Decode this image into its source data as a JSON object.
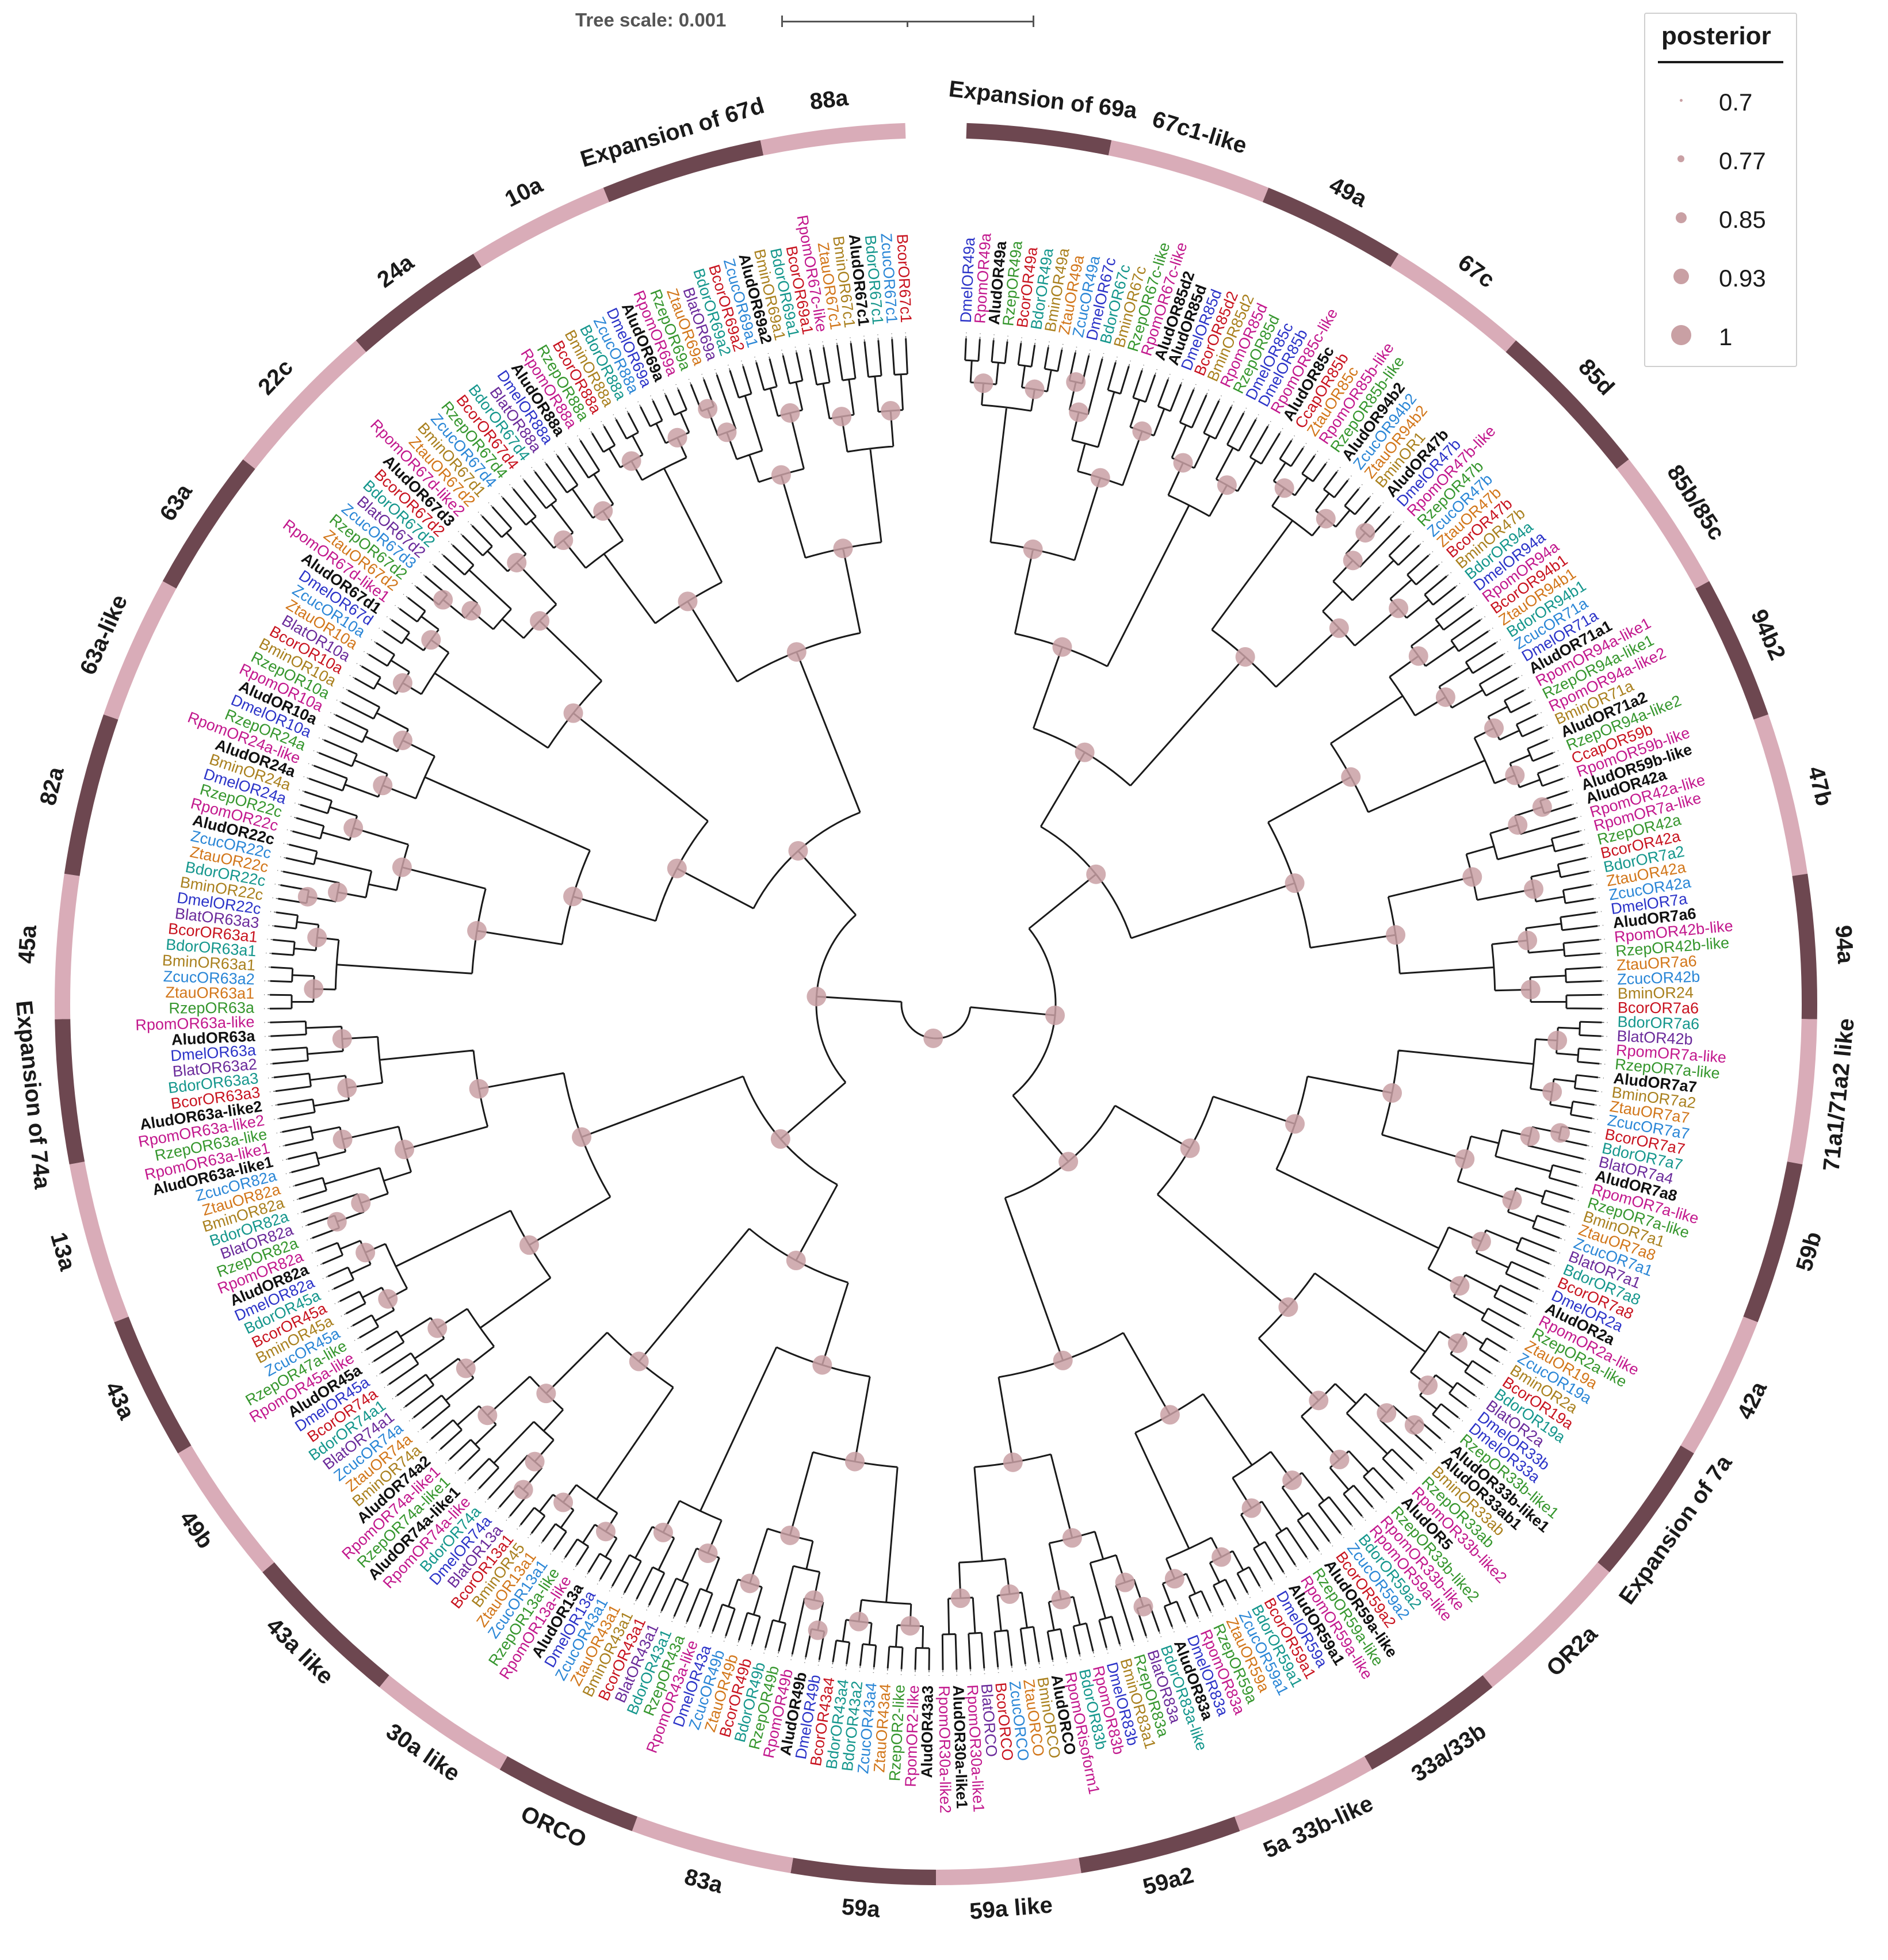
{
  "scale_label": "Tree scale: 0.001",
  "legend": {
    "title": "posterior",
    "items": [
      {
        "label": "0.7",
        "value": 0.7
      },
      {
        "label": "0.77",
        "value": 0.77
      },
      {
        "label": "0.85",
        "value": 0.85
      },
      {
        "label": "0.93",
        "value": 0.93
      },
      {
        "label": "1",
        "value": 1
      }
    ]
  },
  "colors": {
    "ring_dark": "#6d4750",
    "ring_light": "#d9acb8",
    "node": "#c9a0a4",
    "branch": "#1a1a1a",
    "species": {
      "Alud": "#111111",
      "Dmel": "#2b33c8",
      "Bcor": "#c8131f",
      "Bdor": "#14968c",
      "Bmin": "#a9801e",
      "Blat": "#6a2a9a",
      "Zcuc": "#2a86d6",
      "Ztau": "#d2761a",
      "Rzep": "#35962d",
      "Rpom": "#c2188d",
      "Ccap": "#c8131f"
    }
  },
  "clades": [
    {
      "label": "Expansion of 69a"
    },
    {
      "label": "67c1-like"
    },
    {
      "label": "49a"
    },
    {
      "label": "67c"
    },
    {
      "label": "85d"
    },
    {
      "label": "85b/85c"
    },
    {
      "label": "94b2"
    },
    {
      "label": "47b"
    },
    {
      "label": "94a"
    },
    {
      "label": "71a1/71a2 like"
    },
    {
      "label": "59b"
    },
    {
      "label": "42a"
    },
    {
      "label": "Expansion of 7a"
    },
    {
      "label": "OR2a"
    },
    {
      "label": "33a/33b"
    },
    {
      "label": "5a 33b-like"
    },
    {
      "label": "59a2"
    },
    {
      "label": "59a like"
    },
    {
      "label": "59a"
    },
    {
      "label": "83a"
    },
    {
      "label": "ORCO"
    },
    {
      "label": "30a like"
    },
    {
      "label": "43a like"
    },
    {
      "label": "49b"
    },
    {
      "label": "43a"
    },
    {
      "label": "13a"
    },
    {
      "label": "Expansion of 74a"
    },
    {
      "label": "45a"
    },
    {
      "label": "82a"
    },
    {
      "label": "63a-like"
    },
    {
      "label": "63a"
    },
    {
      "label": "22c"
    },
    {
      "label": "24a"
    },
    {
      "label": "10a"
    },
    {
      "label": "Expansion of 67d"
    },
    {
      "label": "88a"
    }
  ],
  "tips": [
    "DmelOR49a",
    "RpomOR49a",
    "AludOR49a",
    "RzepOR49a",
    "BcorOR49a",
    "BdorOR49a",
    "BminOR49a",
    "ZtauOR49a",
    "ZcucOR49a",
    "DmelOR67c",
    "BdorOR67c",
    "BminOR67c",
    "RzepOR67c-like",
    "RpomOR67c-like",
    "AludOR85d2",
    "AludOR85d",
    "DmelOR85d",
    "BcorOR85d2",
    "BminOR85d2",
    "RpomOR85d",
    "RzepOR85d",
    "DmelOR85c",
    "DmelOR85b",
    "RpomOR85c-like",
    "AludOR85c",
    "CcapOR85b",
    "ZtauOR85c",
    "RpomOR85b-like",
    "RzepOR85b-like",
    "AludOR94b2",
    "ZcucOR94b2",
    "ZtauOR94b2",
    "BminOR1",
    "AludOR47b",
    "DmelOR47b",
    "RpomOR47b-like",
    "RzepOR47b",
    "ZcucOR47b",
    "ZtauOR47b",
    "BcorOR47b",
    "BminOR47b",
    "BdorOR94a",
    "DmelOR94a",
    "RpomOR94a",
    "BcorOR94b1",
    "ZtauOR94b1",
    "BdorOR94b1",
    "ZcucOR71a",
    "DmelOR71a",
    "AludOR71a1",
    "RpomOR94a-like1",
    "RzepOR94a-like1",
    "RpomOR94a-like2",
    "BminOR71a",
    "AludOR71a2",
    "RzepOR94a-like2",
    "CcapOR59b",
    "RpomOR59b-like",
    "AludOR59b-like",
    "AludOR42a",
    "RpomOR42a-like",
    "RpomOR7a-like",
    "RzepOR42a",
    "BcorOR42a",
    "BdorOR7a2",
    "ZtauOR42a",
    "ZcucOR42a",
    "DmelOR7a",
    "AludOR7a6",
    "RpomOR42b-like",
    "RzepOR42b-like",
    "ZtauOR7a6",
    "ZcucOR42b",
    "BminOR24",
    "BcorOR7a6",
    "BdorOR7a6",
    "BlatOR42b",
    "RpomOR7a-like",
    "RzepOR7a-like",
    "AludOR7a7",
    "BminOR7a2",
    "ZtauOR7a7",
    "ZcucOR7a7",
    "BcorOR7a7",
    "BdorOR7a7",
    "BlatOR7a4",
    "AludOR7a8",
    "RpomOR7a-like",
    "RzepOR7a-like",
    "BminOR7a1",
    "ZtauOR7a8",
    "ZcucOR7a1",
    "BlatOR7a1",
    "BdorOR7a8",
    "BcorOR7a8",
    "DmelOR2a",
    "AludOR2a",
    "RpomOR2a-like",
    "RzepOR2a-like",
    "ZtauOR19a",
    "ZcucOR19a",
    "BminOR2a",
    "BcorOR19a",
    "BdorOR19a",
    "BlatOR2a",
    "DmelOR33b",
    "DmelOR33a",
    "RzepOR33b-like1",
    "AludOR33b-like1",
    "AludOR33ab1",
    "BminOR33ab",
    "RzepOR33ab",
    "RpomOR33b-like2",
    "AludOR5",
    "RzepOR33b-like2",
    "RpomOR33b-like",
    "RpomOR59a-like",
    "BdorOR59a2",
    "ZcucOR59a2",
    "BcorOR59a2",
    "AludOR59a-like",
    "RzepOR59a-like",
    "RpomOR59a-like",
    "AludOR59a1",
    "DmelOR59a",
    "BcorOR59a1",
    "BdorOR59a1",
    "ZcucOR59a1",
    "ZtauOR59a",
    "RzepOR59a",
    "RpomOR83a",
    "DmelOR83a",
    "AludOR83a",
    "BdorOR83a-like",
    "BlatOR83a",
    "RzepOR83a",
    "BminOR83a1",
    "DmelOR83b",
    "RpomOR83b",
    "BdorOR83b",
    "RpomORisoform1",
    "AludORCO",
    "BminORCO",
    "ZtauORCO",
    "ZcucORCO",
    "BcorORCO",
    "BlatORCO",
    "RpomOR30a-like1",
    "AludOR30a-like1",
    "RpomOR30a-like2",
    "AludOR43a3",
    "RpomOR2-like",
    "RzepOR2-like",
    "ZtauOR43a4",
    "ZcucOR43a4",
    "BdorOR43a2",
    "BdorOR43a4",
    "BcorOR43a4",
    "DmelOR49b",
    "AludOR49b",
    "RpomOR49b",
    "RzepOR49b",
    "BdorOR49b",
    "BcorOR49b",
    "ZtauOR49b",
    "ZcucOR49b",
    "DmelOR43a",
    "RpomOR43a-like",
    "RzepOR43a",
    "BdorOR43a1",
    "BlatOR43a1",
    "BcorOR43a1",
    "BminOR43a1",
    "ZtauOR43a1",
    "ZcucOR43a1",
    "DmelOR13a",
    "AludOR13a",
    "RpomOR13a-like",
    "RzepOR13a-like",
    "ZcucOR13a1",
    "ZtauOR13a1",
    "BminOR45",
    "BcorOR13a1",
    "BlatOR13a",
    "DmelOR74a",
    "BdorOR74a",
    "RpomOR74a-like",
    "AludOR74a-like1",
    "RzepOR74a-like1",
    "RpomOR74a-like1",
    "AludOR74a2",
    "BminOR74a",
    "ZtauOR74a",
    "ZcucOR74a",
    "BlatOR74a1",
    "BdorOR74a1",
    "BcorOR74a",
    "DmelOR45a",
    "AludOR45a",
    "RpomOR45a-like",
    "RzepOR47a-like",
    "ZcucOR45a",
    "BminOR45a",
    "BcorOR45a",
    "BdorOR45a",
    "DmelOR82a",
    "AludOR82a",
    "RpomOR82a",
    "RzepOR82a",
    "BlatOR82a",
    "BdorOR82a",
    "BminOR82a",
    "ZtauOR82a",
    "ZcucOR82a",
    "AludOR63a-like1",
    "RpomOR63a-like1",
    "RzepOR63a-like",
    "RpomOR63a-like2",
    "AludOR63a-like2",
    "BcorOR63a3",
    "BdorOR63a3",
    "BlatOR63a2",
    "DmelOR63a",
    "AludOR63a",
    "RpomOR63a-like",
    "RzepOR63a",
    "ZtauOR63a1",
    "ZcucOR63a2",
    "BminOR63a1",
    "BdorOR63a1",
    "BcorOR63a1",
    "BlatOR63a3",
    "DmelOR22c",
    "BminOR22c",
    "BdorOR22c",
    "ZtauOR22c",
    "ZcucOR22c",
    "AludOR22c",
    "RpomOR22c",
    "RzepOR22c",
    "DmelOR24a",
    "BminOR24a",
    "AludOR24a",
    "RpomOR24a-like",
    "RzepOR24a",
    "DmelOR10a",
    "AludOR10a",
    "RpomOR10a",
    "RzepOR10a",
    "BminOR10a",
    "BcorOR10a",
    "BlatOR10a",
    "ZtauOR10a",
    "ZcucOR10a",
    "DmelOR67d",
    "AludOR67d1",
    "RpomOR67d-like1",
    "ZtauOR67d2",
    "RzepOR67d2",
    "ZcucOR67d3",
    "BlatOR67d2",
    "BdorOR67d2",
    "BcorOR67d2",
    "AludOR67d3",
    "RpomOR67d-like2",
    "ZtauOR67d2",
    "BminOR67d1",
    "ZcucOR67d4",
    "RzepOR67d4",
    "BcorOR67d4",
    "BdorOR67d4",
    "BlatOR88a",
    "DmelOR88a",
    "AludOR88a",
    "RpomOR88a",
    "RzepOR88a",
    "BcorOR88a",
    "BminOR88a",
    "BdorOR88a",
    "ZcucOR88a",
    "DmelOR69a",
    "AludOR69a",
    "RpomOR69a",
    "RzepOR69a",
    "ZtauOR69a",
    "BlatOR69a",
    "BdorOR69a2",
    "BcorOR69a2",
    "ZcucOR69a1",
    "AludOR69a2",
    "BminOR69a1",
    "BdorOR69a1",
    "BcorOR69a1",
    "RpomOR67c-like",
    "ZtauOR67c1",
    "BminOR67c1",
    "AludOR67c1",
    "BdorOR67c1",
    "ZcucOR67c1",
    "BcorOR67c1"
  ]
}
